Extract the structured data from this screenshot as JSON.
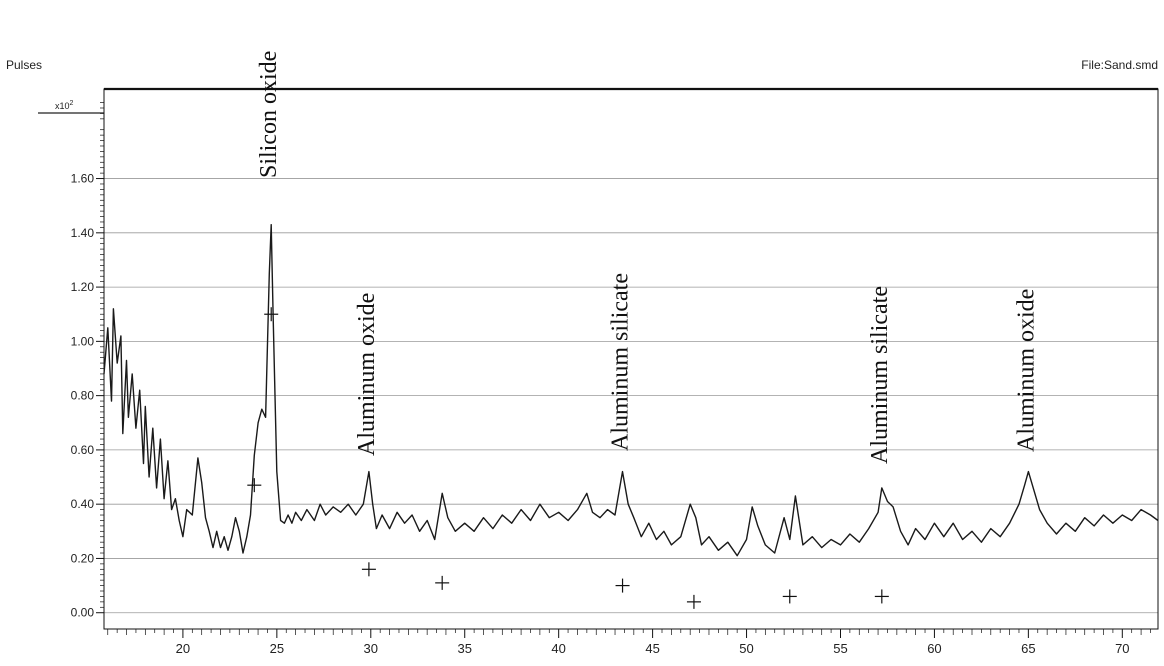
{
  "header": {
    "y_axis_name": "Pulses",
    "file_label": "File:Sand.smd",
    "y_multiplier_base": "x10",
    "y_multiplier_exp": "2"
  },
  "chart_data": {
    "type": "line",
    "title": "",
    "xlabel": "",
    "ylabel": "Pulses",
    "xlim": [
      15.8,
      71.9
    ],
    "ylim": [
      -0.06,
      1.93
    ],
    "y_scale_note": "x10^2",
    "x_ticks": [
      20,
      25,
      30,
      35,
      40,
      45,
      50,
      55,
      60,
      65,
      70
    ],
    "x_tick_labels": [
      "20",
      "25",
      "30",
      "35",
      "40",
      "45",
      "50",
      "55",
      "60",
      "65",
      "70"
    ],
    "y_ticks": [
      0.0,
      0.2,
      0.4,
      0.6,
      0.8,
      1.0,
      1.2,
      1.4,
      1.6
    ],
    "y_tick_labels": [
      "0.00",
      "0.20",
      "0.40",
      "0.60",
      "0.80",
      "1.00",
      "1.20",
      "1.40",
      "1.60"
    ],
    "grid": "horizontal",
    "series": [
      {
        "color": "#1a1a1a",
        "points": [
          [
            15.8,
            0.88
          ],
          [
            16.0,
            1.05
          ],
          [
            16.2,
            0.78
          ],
          [
            16.3,
            1.12
          ],
          [
            16.5,
            0.92
          ],
          [
            16.7,
            1.02
          ],
          [
            16.8,
            0.66
          ],
          [
            17.0,
            0.93
          ],
          [
            17.1,
            0.72
          ],
          [
            17.3,
            0.88
          ],
          [
            17.5,
            0.68
          ],
          [
            17.7,
            0.82
          ],
          [
            17.9,
            0.55
          ],
          [
            18.0,
            0.76
          ],
          [
            18.2,
            0.5
          ],
          [
            18.4,
            0.68
          ],
          [
            18.6,
            0.46
          ],
          [
            18.8,
            0.64
          ],
          [
            19.0,
            0.42
          ],
          [
            19.2,
            0.56
          ],
          [
            19.4,
            0.38
          ],
          [
            19.6,
            0.42
          ],
          [
            19.8,
            0.34
          ],
          [
            20.0,
            0.28
          ],
          [
            20.2,
            0.38
          ],
          [
            20.5,
            0.36
          ],
          [
            20.8,
            0.57
          ],
          [
            21.0,
            0.48
          ],
          [
            21.2,
            0.35
          ],
          [
            21.4,
            0.3
          ],
          [
            21.6,
            0.24
          ],
          [
            21.8,
            0.3
          ],
          [
            22.0,
            0.24
          ],
          [
            22.2,
            0.28
          ],
          [
            22.4,
            0.23
          ],
          [
            22.6,
            0.28
          ],
          [
            22.8,
            0.35
          ],
          [
            23.0,
            0.3
          ],
          [
            23.2,
            0.22
          ],
          [
            23.4,
            0.28
          ],
          [
            23.6,
            0.36
          ],
          [
            23.8,
            0.58
          ],
          [
            24.0,
            0.7
          ],
          [
            24.2,
            0.75
          ],
          [
            24.4,
            0.72
          ],
          [
            24.6,
            1.25
          ],
          [
            24.7,
            1.43
          ],
          [
            24.8,
            1.1
          ],
          [
            24.9,
            0.8
          ],
          [
            25.0,
            0.52
          ],
          [
            25.2,
            0.34
          ],
          [
            25.4,
            0.33
          ],
          [
            25.6,
            0.36
          ],
          [
            25.8,
            0.33
          ],
          [
            26.0,
            0.37
          ],
          [
            26.3,
            0.34
          ],
          [
            26.6,
            0.38
          ],
          [
            27.0,
            0.34
          ],
          [
            27.3,
            0.4
          ],
          [
            27.6,
            0.36
          ],
          [
            28.0,
            0.39
          ],
          [
            28.4,
            0.37
          ],
          [
            28.8,
            0.4
          ],
          [
            29.2,
            0.36
          ],
          [
            29.6,
            0.4
          ],
          [
            29.9,
            0.52
          ],
          [
            30.1,
            0.4
          ],
          [
            30.3,
            0.31
          ],
          [
            30.6,
            0.36
          ],
          [
            31.0,
            0.31
          ],
          [
            31.4,
            0.37
          ],
          [
            31.8,
            0.33
          ],
          [
            32.2,
            0.36
          ],
          [
            32.6,
            0.3
          ],
          [
            33.0,
            0.34
          ],
          [
            33.4,
            0.27
          ],
          [
            33.8,
            0.44
          ],
          [
            34.1,
            0.35
          ],
          [
            34.5,
            0.3
          ],
          [
            35.0,
            0.33
          ],
          [
            35.5,
            0.3
          ],
          [
            36.0,
            0.35
          ],
          [
            36.5,
            0.31
          ],
          [
            37.0,
            0.36
          ],
          [
            37.5,
            0.33
          ],
          [
            38.0,
            0.38
          ],
          [
            38.5,
            0.34
          ],
          [
            39.0,
            0.4
          ],
          [
            39.5,
            0.35
          ],
          [
            40.0,
            0.37
          ],
          [
            40.5,
            0.34
          ],
          [
            41.0,
            0.38
          ],
          [
            41.5,
            0.44
          ],
          [
            41.8,
            0.37
          ],
          [
            42.2,
            0.35
          ],
          [
            42.6,
            0.38
          ],
          [
            43.0,
            0.36
          ],
          [
            43.4,
            0.52
          ],
          [
            43.7,
            0.4
          ],
          [
            44.0,
            0.35
          ],
          [
            44.4,
            0.28
          ],
          [
            44.8,
            0.33
          ],
          [
            45.2,
            0.27
          ],
          [
            45.6,
            0.3
          ],
          [
            46.0,
            0.25
          ],
          [
            46.5,
            0.28
          ],
          [
            47.0,
            0.4
          ],
          [
            47.3,
            0.35
          ],
          [
            47.6,
            0.25
          ],
          [
            48.0,
            0.28
          ],
          [
            48.5,
            0.23
          ],
          [
            49.0,
            0.26
          ],
          [
            49.5,
            0.21
          ],
          [
            50.0,
            0.27
          ],
          [
            50.3,
            0.39
          ],
          [
            50.6,
            0.32
          ],
          [
            51.0,
            0.25
          ],
          [
            51.5,
            0.22
          ],
          [
            52.0,
            0.35
          ],
          [
            52.3,
            0.27
          ],
          [
            52.6,
            0.43
          ],
          [
            53.0,
            0.25
          ],
          [
            53.5,
            0.28
          ],
          [
            54.0,
            0.24
          ],
          [
            54.5,
            0.27
          ],
          [
            55.0,
            0.25
          ],
          [
            55.5,
            0.29
          ],
          [
            56.0,
            0.26
          ],
          [
            56.5,
            0.31
          ],
          [
            57.0,
            0.37
          ],
          [
            57.2,
            0.46
          ],
          [
            57.5,
            0.41
          ],
          [
            57.8,
            0.39
          ],
          [
            58.2,
            0.3
          ],
          [
            58.6,
            0.25
          ],
          [
            59.0,
            0.31
          ],
          [
            59.5,
            0.27
          ],
          [
            60.0,
            0.33
          ],
          [
            60.5,
            0.28
          ],
          [
            61.0,
            0.33
          ],
          [
            61.5,
            0.27
          ],
          [
            62.0,
            0.3
          ],
          [
            62.5,
            0.26
          ],
          [
            63.0,
            0.31
          ],
          [
            63.5,
            0.28
          ],
          [
            64.0,
            0.33
          ],
          [
            64.5,
            0.4
          ],
          [
            64.8,
            0.47
          ],
          [
            65.0,
            0.52
          ],
          [
            65.3,
            0.45
          ],
          [
            65.6,
            0.38
          ],
          [
            66.0,
            0.33
          ],
          [
            66.5,
            0.29
          ],
          [
            67.0,
            0.33
          ],
          [
            67.5,
            0.3
          ],
          [
            68.0,
            0.35
          ],
          [
            68.5,
            0.32
          ],
          [
            69.0,
            0.36
          ],
          [
            69.5,
            0.33
          ],
          [
            70.0,
            0.36
          ],
          [
            70.5,
            0.34
          ],
          [
            71.0,
            0.38
          ],
          [
            71.5,
            0.36
          ],
          [
            71.9,
            0.34
          ]
        ]
      }
    ],
    "markers": [
      {
        "x": 23.8,
        "y": 0.47
      },
      {
        "x": 24.7,
        "y": 1.1
      },
      {
        "x": 29.9,
        "y": 0.16
      },
      {
        "x": 33.8,
        "y": 0.11
      },
      {
        "x": 43.4,
        "y": 0.1
      },
      {
        "x": 47.2,
        "y": 0.04
      },
      {
        "x": 52.3,
        "y": 0.06
      },
      {
        "x": 57.2,
        "y": 0.06
      }
    ],
    "annotations": [
      {
        "text": "Silicon oxide",
        "x": 24.7
      },
      {
        "text": "Aluminum oxide",
        "x": 29.9
      },
      {
        "text": "Aluminum silicate",
        "x": 43.4
      },
      {
        "text": "Aluminum silicate",
        "x": 57.2
      },
      {
        "text": "Aluminum oxide",
        "x": 65.0
      }
    ]
  }
}
